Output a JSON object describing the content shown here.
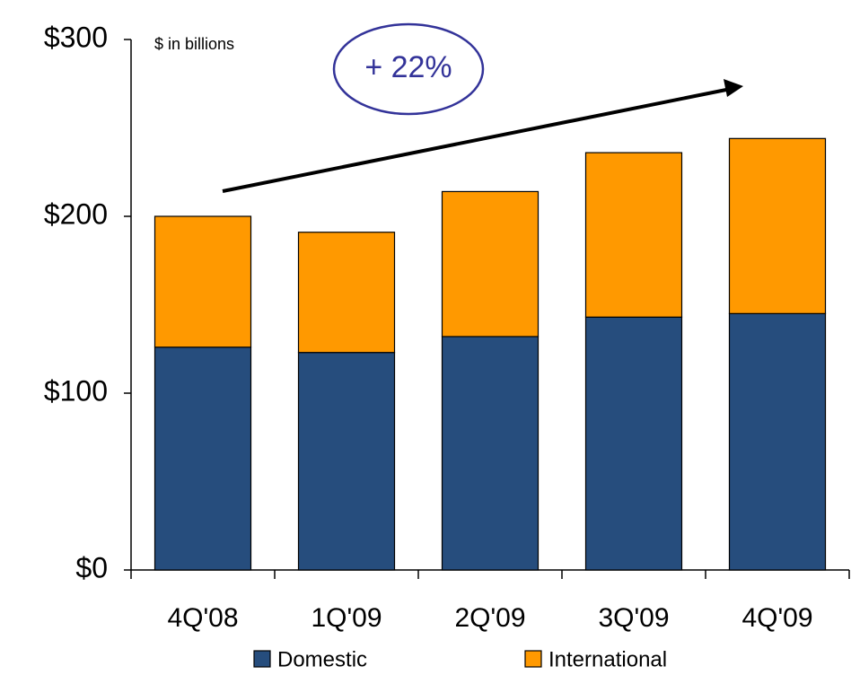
{
  "chart_data": {
    "type": "stacked-bar",
    "annotations": [
      "$ in billions",
      "+ 22%"
    ],
    "categories": [
      "4Q'08",
      "1Q'09",
      "2Q'09",
      "3Q'09",
      "4Q'09"
    ],
    "series": [
      {
        "name": "Domestic",
        "color": "#264d7d",
        "values": [
          126,
          123,
          132,
          143,
          145
        ]
      },
      {
        "name": "International",
        "color": "#ff9900",
        "values": [
          74,
          68,
          82,
          93,
          99
        ]
      }
    ],
    "ylim": [
      0,
      300
    ],
    "yticks": [
      {
        "value": 0,
        "label": "$0"
      },
      {
        "value": 100,
        "label": "$100"
      },
      {
        "value": 200,
        "label": "$200"
      },
      {
        "value": 300,
        "label": "$300"
      }
    ],
    "grid": false
  }
}
